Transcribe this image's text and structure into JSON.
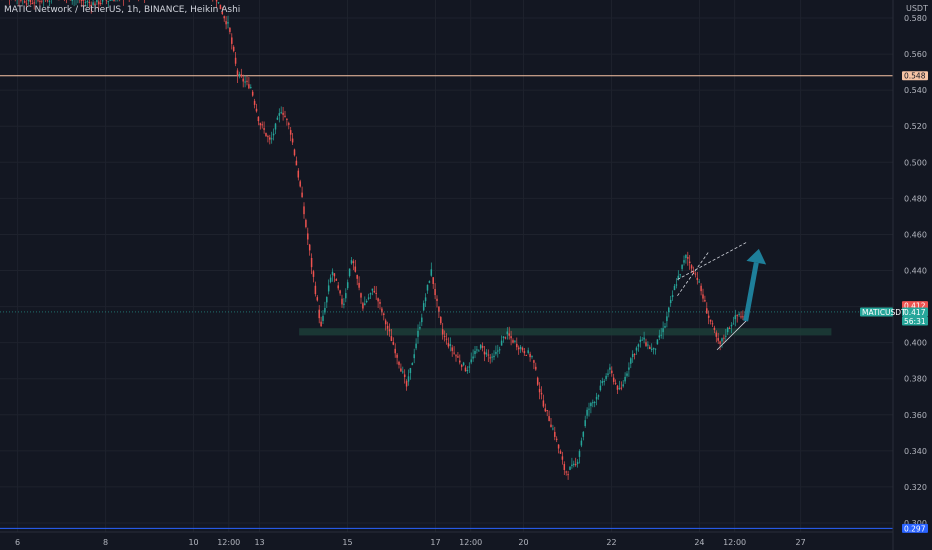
{
  "chart_data": {
    "type": "candlestick",
    "title": "MATIC Network / TetherUS, 1h, BINANCE, Heikin Ashi",
    "currency_label": "USDT",
    "ylim": [
      0.295,
      0.59
    ],
    "y_ticks": [
      "0.580",
      "0.560",
      "0.540",
      "0.520",
      "0.500",
      "0.480",
      "0.460",
      "0.440",
      "0.420",
      "0.400",
      "0.380",
      "0.360",
      "0.340",
      "0.320",
      "0.300"
    ],
    "x_ticks": [
      {
        "label": "6",
        "t": 0
      },
      {
        "label": "8",
        "t": 2
      },
      {
        "label": "10",
        "t": 4
      },
      {
        "label": "12:00",
        "t": 4.8
      },
      {
        "label": "13",
        "t": 5.5
      },
      {
        "label": "15",
        "t": 7.5
      },
      {
        "label": "17",
        "t": 9.5
      },
      {
        "label": "12:00",
        "t": 10.3
      },
      {
        "label": "20",
        "t": 11.5
      },
      {
        "label": "22",
        "t": 13.5
      },
      {
        "label": "24",
        "t": 15.5
      },
      {
        "label": "12:00",
        "t": 16.3
      },
      {
        "label": "27",
        "t": 17.8
      }
    ],
    "x_range": [
      -0.4,
      19.9
    ],
    "price_path": [
      [
        -0.4,
        0.594
      ],
      [
        0.3,
        0.589
      ],
      [
        1.0,
        0.593
      ],
      [
        1.7,
        0.588
      ],
      [
        2.4,
        0.592
      ],
      [
        3.1,
        0.595
      ],
      [
        4.0,
        0.6
      ],
      [
        4.5,
        0.592
      ],
      [
        4.8,
        0.575
      ],
      [
        5.0,
        0.548
      ],
      [
        5.3,
        0.542
      ],
      [
        5.5,
        0.522
      ],
      [
        5.75,
        0.511
      ],
      [
        6.0,
        0.53
      ],
      [
        6.2,
        0.518
      ],
      [
        6.4,
        0.49
      ],
      [
        6.7,
        0.44
      ],
      [
        6.9,
        0.408
      ],
      [
        7.15,
        0.44
      ],
      [
        7.4,
        0.42
      ],
      [
        7.6,
        0.448
      ],
      [
        7.85,
        0.42
      ],
      [
        8.1,
        0.43
      ],
      [
        8.35,
        0.412
      ],
      [
        8.6,
        0.395
      ],
      [
        8.85,
        0.375
      ],
      [
        9.1,
        0.405
      ],
      [
        9.4,
        0.44
      ],
      [
        9.65,
        0.405
      ],
      [
        9.9,
        0.395
      ],
      [
        10.2,
        0.385
      ],
      [
        10.5,
        0.398
      ],
      [
        10.8,
        0.39
      ],
      [
        11.1,
        0.405
      ],
      [
        11.4,
        0.398
      ],
      [
        11.7,
        0.392
      ],
      [
        11.9,
        0.37
      ],
      [
        12.2,
        0.35
      ],
      [
        12.45,
        0.328
      ],
      [
        12.7,
        0.332
      ],
      [
        12.95,
        0.362
      ],
      [
        13.2,
        0.372
      ],
      [
        13.45,
        0.385
      ],
      [
        13.7,
        0.372
      ],
      [
        13.95,
        0.392
      ],
      [
        14.2,
        0.402
      ],
      [
        14.45,
        0.395
      ],
      [
        14.7,
        0.408
      ],
      [
        14.95,
        0.432
      ],
      [
        15.2,
        0.448
      ],
      [
        15.45,
        0.436
      ],
      [
        15.7,
        0.415
      ],
      [
        15.95,
        0.398
      ],
      [
        16.2,
        0.41
      ],
      [
        16.4,
        0.416
      ],
      [
        16.55,
        0.412
      ]
    ],
    "support_zone": {
      "low": 0.404,
      "high": 0.408,
      "t_start": 6.4,
      "t_end": 18.5
    },
    "resistance_line": {
      "price": 0.548,
      "label": "0.548"
    },
    "bottom_line": {
      "price": 0.297,
      "label": "0.297"
    },
    "trend_channel": {
      "upper": [
        [
          15.0,
          0.435
        ],
        [
          16.6,
          0.456
        ]
      ],
      "lower": [
        [
          15.0,
          0.426
        ],
        [
          15.7,
          0.45
        ]
      ],
      "rising": [
        [
          15.9,
          0.396
        ],
        [
          16.6,
          0.413
        ]
      ]
    },
    "arrow": {
      "from": [
        16.55,
        0.412
      ],
      "to": [
        16.85,
        0.452
      ]
    },
    "current": {
      "symbol": "MATICUSDT",
      "price": "0.417",
      "countdown": "56:31",
      "last_red_price": "0.412"
    },
    "colors": {
      "background": "#131722",
      "up": "#26a69a",
      "down": "#ef5350",
      "grid": "#1e222d",
      "text": "#b2b5be",
      "resistance": "#f7c4a5",
      "bottom": "#2962ff",
      "zone": "#1c3b36",
      "arrow": "#1e7f9a"
    }
  }
}
